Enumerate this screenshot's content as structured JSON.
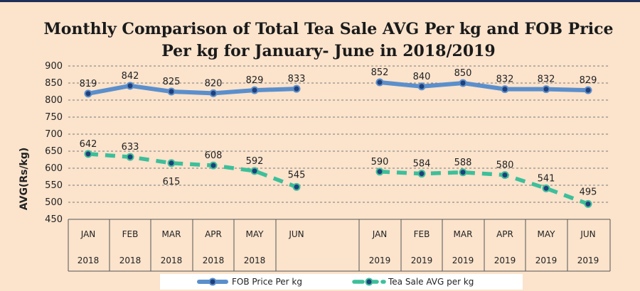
{
  "chart_data": {
    "type": "line",
    "title": "Monthly Comparison of Total Tea Sale AVG Per kg and FOB Price",
    "subtitle": "Per kg for January- June in 2018/2019",
    "ylabel": "AVG(Rs/kg)",
    "ylim": [
      450,
      900
    ],
    "yticks": [
      450,
      500,
      550,
      600,
      650,
      700,
      750,
      800,
      850,
      900
    ],
    "grid": true,
    "legend_position": "bottom",
    "categories": [
      {
        "month": "JAN",
        "year": "2018"
      },
      {
        "month": "FEB",
        "year": "2018"
      },
      {
        "month": "MAR",
        "year": "2018"
      },
      {
        "month": "APR",
        "year": "2018"
      },
      {
        "month": "MAY",
        "year": "2018"
      },
      {
        "month": "JUN",
        "year": ""
      },
      {
        "month": "JAN",
        "year": "2019"
      },
      {
        "month": "FEB",
        "year": "2019"
      },
      {
        "month": "MAR",
        "year": "2019"
      },
      {
        "month": "APR",
        "year": "2019"
      },
      {
        "month": "MAY",
        "year": "2019"
      },
      {
        "month": "JUN",
        "year": "2019"
      }
    ],
    "series": [
      {
        "name": "FOB Price Per kg",
        "color": "#5b8fcc",
        "style": "solid",
        "values": [
          819,
          842,
          825,
          820,
          829,
          833,
          852,
          840,
          850,
          832,
          832,
          829
        ]
      },
      {
        "name": "Tea Sale AVG per kg",
        "color": "#3dbf9a",
        "style": "dashed",
        "values": [
          642,
          633,
          615,
          608,
          592,
          545,
          590,
          584,
          588,
          580,
          541,
          495
        ]
      }
    ]
  }
}
